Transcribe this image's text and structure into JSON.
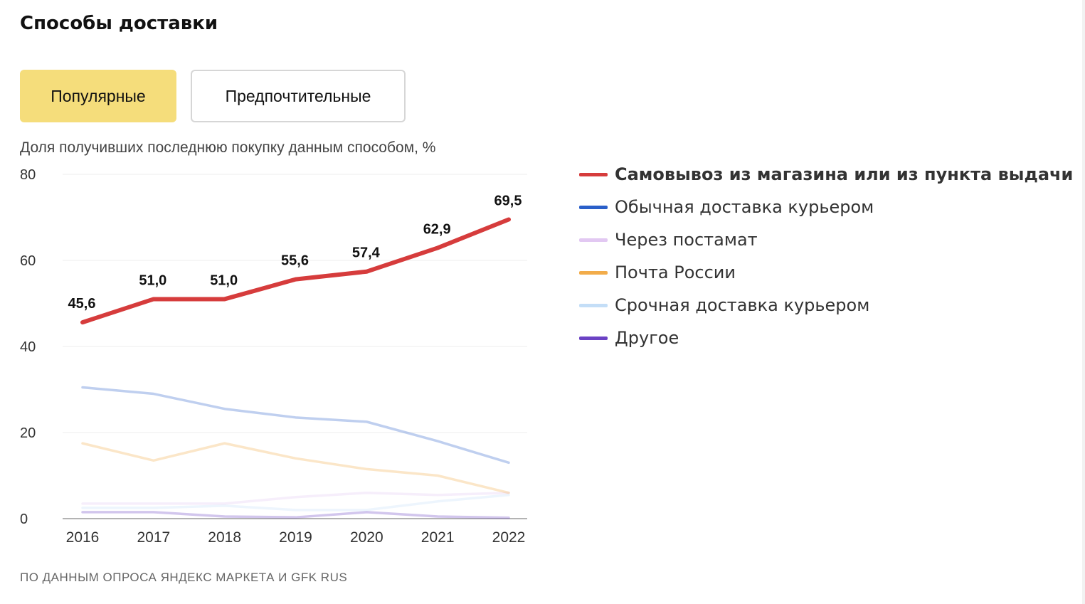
{
  "title": "Способы доставки",
  "tabs": [
    {
      "label": "Популярные",
      "active": true
    },
    {
      "label": "Предпочтительные",
      "active": false
    }
  ],
  "subtitle": "Доля получивших последнюю покупку данным способом, %",
  "source": "ПО ДАННЫМ ОПРОСА ЯНДЕКС МАРКЕТА И GFK RUS",
  "colors": {
    "pickup": "#d63c3c",
    "courier": "#2a5fc9",
    "postamat": "#e2c8f2",
    "post": "#f2ac4a",
    "express": "#c4def7",
    "other": "#6b42c4"
  },
  "chart_data": {
    "type": "line",
    "x": [
      "2016",
      "2017",
      "2018",
      "2019",
      "2020",
      "2021",
      "2022"
    ],
    "ylim": [
      0,
      80
    ],
    "yticks": [
      "0",
      "20",
      "40",
      "60",
      "80"
    ],
    "grid": true,
    "legend_position": "right",
    "series": [
      {
        "name": "Самовывоз из магазина или из пункта выдачи",
        "key": "pickup",
        "active": true,
        "values": [
          45.6,
          51.0,
          51.0,
          55.6,
          57.4,
          62.9,
          69.5
        ],
        "labels": [
          "45,6",
          "51,0",
          "51,0",
          "55,6",
          "57,4",
          "62,9",
          "69,5"
        ]
      },
      {
        "name": "Обычная доставка курьером",
        "key": "courier",
        "active": false,
        "values": [
          30.5,
          29.0,
          25.5,
          23.5,
          22.5,
          18.0,
          13.0
        ]
      },
      {
        "name": "Через постамат",
        "key": "postamat",
        "active": false,
        "values": [
          3.5,
          3.5,
          3.5,
          5.0,
          6.0,
          5.5,
          6.0
        ]
      },
      {
        "name": "Почта России",
        "key": "post",
        "active": false,
        "values": [
          17.5,
          13.5,
          17.5,
          14.0,
          11.5,
          10.0,
          6.0
        ]
      },
      {
        "name": "Срочная доставка курьером",
        "key": "express",
        "active": false,
        "values": [
          2.5,
          2.5,
          3.0,
          2.0,
          2.0,
          4.0,
          5.5
        ]
      },
      {
        "name": "Другое",
        "key": "other",
        "active": false,
        "values": [
          1.5,
          1.5,
          0.5,
          0.3,
          1.5,
          0.5,
          0.2
        ]
      }
    ]
  }
}
